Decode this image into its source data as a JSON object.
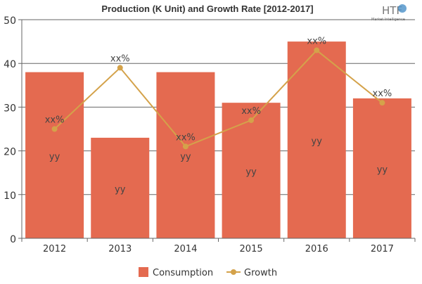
{
  "chart_data": {
    "type": "bar",
    "title": "Production (K Unit) and Growth Rate [2012-2017]",
    "logo": {
      "text": "HTF",
      "subtext": "Market Intelligence"
    },
    "categories": [
      "2012",
      "2013",
      "2014",
      "2015",
      "2016",
      "2017"
    ],
    "series": [
      {
        "name": "Consumption",
        "type": "bar",
        "values": [
          38,
          23,
          38,
          31,
          45,
          32
        ],
        "labels": [
          "yy",
          "yy",
          "yy",
          "yy",
          "yy",
          "yy"
        ],
        "color": "#e46a50"
      },
      {
        "name": "Growth",
        "type": "line",
        "values": [
          25,
          39,
          21,
          27,
          43,
          31
        ],
        "labels": [
          "xx%",
          "xx%",
          "xx%",
          "xx%",
          "xx%",
          "xx%"
        ],
        "color": "#d4a24a"
      }
    ],
    "ylim": [
      0,
      50
    ],
    "yticks": [
      0,
      10,
      20,
      30,
      40,
      50
    ],
    "grid": true,
    "legend": "bottom-center",
    "xlabel": "",
    "ylabel": ""
  }
}
